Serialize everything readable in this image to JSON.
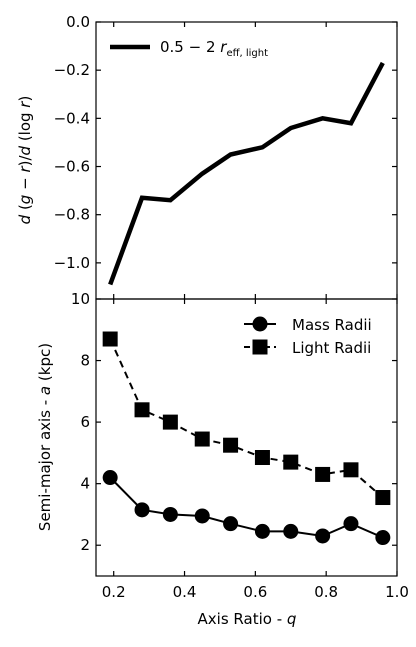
{
  "chart_data": [
    {
      "type": "line",
      "title": "",
      "xlabel": "",
      "ylabel_parts": [
        "d",
        " (",
        "g",
        " − ",
        "r",
        ")/",
        "d",
        " (log ",
        "r",
        ")"
      ],
      "xlim": [
        0.15,
        1.0
      ],
      "ylim": [
        -1.15,
        0.0
      ],
      "yticks": [
        0.0,
        -0.2,
        -0.4,
        -0.6,
        -0.8,
        -1.0
      ],
      "ytick_labels": [
        "0.0",
        "−0.2",
        "−0.4",
        "−0.6",
        "−0.8",
        "−1.0"
      ],
      "legend": {
        "position": "top-left",
        "label_main": "0.5 − 2 ",
        "label_italic": "r",
        "label_sub": "eff, light"
      },
      "series": [
        {
          "x": [
            0.19,
            0.28,
            0.36,
            0.45,
            0.53,
            0.62,
            0.7,
            0.79,
            0.87,
            0.96
          ],
          "y": [
            -1.09,
            -0.73,
            -0.74,
            -0.63,
            -0.55,
            -0.52,
            -0.44,
            -0.4,
            -0.42,
            -0.17
          ],
          "color": "#000000",
          "linestyle": "solid",
          "marker": "none"
        }
      ]
    },
    {
      "type": "line",
      "title": "",
      "xlabel_main": "Axis Ratio - ",
      "xlabel_italic": "q",
      "ylabel_main": "Semi-major axis - ",
      "ylabel_italic": "a",
      "ylabel_unit": " (kpc)",
      "xlim": [
        0.15,
        1.0
      ],
      "ylim": [
        1.0,
        10.0
      ],
      "xticks": [
        0.2,
        0.4,
        0.6,
        0.8,
        1.0
      ],
      "xtick_labels": [
        "0.2",
        "0.4",
        "0.6",
        "0.8",
        "1.0"
      ],
      "yticks": [
        2,
        4,
        6,
        8,
        10
      ],
      "ytick_labels": [
        "2",
        "4",
        "6",
        "8",
        "10"
      ],
      "legend": {
        "position": "top-right"
      },
      "series": [
        {
          "name": "Mass Radii",
          "x": [
            0.19,
            0.28,
            0.36,
            0.45,
            0.53,
            0.62,
            0.7,
            0.79,
            0.87,
            0.96
          ],
          "y": [
            4.2,
            3.15,
            3.0,
            2.95,
            2.7,
            2.45,
            2.45,
            2.3,
            2.7,
            2.25
          ],
          "color": "#000000",
          "linestyle": "solid",
          "marker": "circle"
        },
        {
          "name": "Light Radii",
          "x": [
            0.19,
            0.28,
            0.36,
            0.45,
            0.53,
            0.62,
            0.7,
            0.79,
            0.87,
            0.96
          ],
          "y": [
            8.7,
            6.4,
            6.0,
            5.45,
            5.25,
            4.85,
            4.7,
            4.3,
            4.45,
            3.55
          ],
          "color": "#000000",
          "linestyle": "dashed",
          "marker": "square"
        }
      ]
    }
  ]
}
